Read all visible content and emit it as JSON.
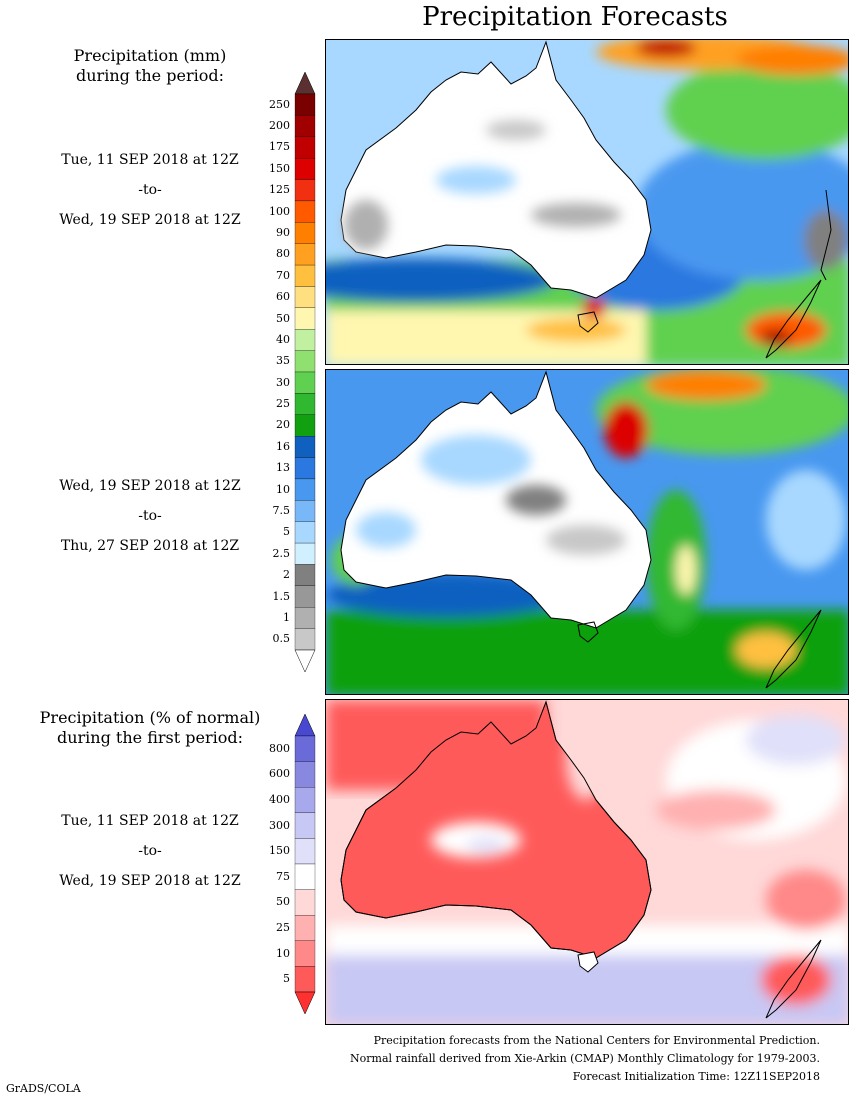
{
  "title": "Precipitation Forecasts",
  "sections": {
    "amount": {
      "heading_line1": "Precipitation (mm)",
      "heading_line2": "during the period:"
    },
    "percent": {
      "heading_line1": "Precipitation (% of normal)",
      "heading_line2": "during the first period:"
    }
  },
  "periods": [
    {
      "start": "Tue, 11 SEP 2018 at 12Z",
      "sep": "-to-",
      "end": "Wed, 19 SEP 2018 at 12Z"
    },
    {
      "start": "Wed, 19 SEP 2018 at 12Z",
      "sep": "-to-",
      "end": "Thu, 27 SEP 2018 at 12Z"
    },
    {
      "start": "Tue, 11 SEP 2018 at 12Z",
      "sep": "-to-",
      "end": "Wed, 19 SEP 2018 at 12Z"
    }
  ],
  "colorbar_mm": {
    "labels": [
      "250",
      "200",
      "175",
      "150",
      "125",
      "100",
      "90",
      "80",
      "70",
      "60",
      "50",
      "40",
      "35",
      "30",
      "25",
      "20",
      "16",
      "13",
      "10",
      "7.5",
      "5",
      "2.5",
      "2",
      "1.5",
      "1",
      "0.5"
    ],
    "colors": [
      "#7a0000",
      "#a00000",
      "#c00000",
      "#dc0000",
      "#f03010",
      "#ff5a00",
      "#ff7f00",
      "#ffa020",
      "#ffc040",
      "#ffe080",
      "#fff7b0",
      "#c0f0a0",
      "#90e070",
      "#60d050",
      "#30b830",
      "#10a010",
      "#1060c0",
      "#2a78e0",
      "#4898f0",
      "#78b8f8",
      "#a8d8ff",
      "#d0f0ff",
      "#808080",
      "#989898",
      "#b0b0b0",
      "#c8c8c8"
    ],
    "top_color": "#5a3030",
    "bottom_color": "#ffffff"
  },
  "colorbar_pct": {
    "labels": [
      "800",
      "600",
      "400",
      "300",
      "150",
      "75",
      "50",
      "25",
      "10",
      "5"
    ],
    "colors": [
      "#6a6ad8",
      "#8888e0",
      "#a8a8ec",
      "#c8c8f4",
      "#e0e0fa",
      "#ffffff",
      "#ffd8d8",
      "#ffb0b0",
      "#ff8888",
      "#ff5a5a"
    ],
    "top_color": "#4848d0",
    "bottom_color": "#ff3030"
  },
  "footer": {
    "line1": "Precipitation forecasts from the National Centers for Environmental Prediction.",
    "line2": "Normal rainfall derived from Xie-Arkin (CMAP) Monthly Climatology for 1979-2003.",
    "line3": "Forecast Initialization Time: 12Z11SEP2018"
  },
  "credit": "GrADS/COLA"
}
